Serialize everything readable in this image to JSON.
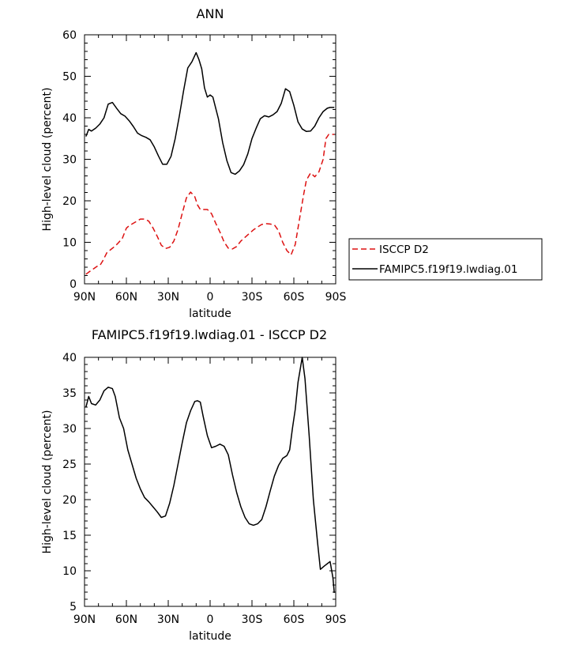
{
  "chart_data": [
    {
      "type": "line",
      "title": "ANN",
      "xlabel": "latitude",
      "ylabel": "High-level cloud (percent)",
      "xlim": [
        -90,
        90
      ],
      "ylim": [
        0,
        60
      ],
      "xticks": [
        -90,
        -60,
        -30,
        0,
        30,
        60,
        90
      ],
      "xtick_labels": [
        "90N",
        "60N",
        "30N",
        "0",
        "30S",
        "60S",
        "90S"
      ],
      "yticks": [
        0,
        10,
        20,
        30,
        40,
        50,
        60
      ],
      "ytick_labels": [
        "0",
        "10",
        "20",
        "30",
        "40",
        "50",
        "60"
      ],
      "legend_position": "right",
      "series": [
        {
          "name": "ISCCP D2",
          "color": "#dd1111",
          "style": "dashed",
          "x": [
            -89,
            -87,
            -84,
            -81,
            -79,
            -77,
            -74,
            -71,
            -68,
            -66,
            -63,
            -60,
            -58,
            -56,
            -53,
            -50,
            -47,
            -44,
            -41,
            -38,
            -35,
            -32,
            -29,
            -26,
            -23,
            -20,
            -17,
            -14,
            -11,
            -9,
            -7,
            -5,
            -2,
            1,
            4,
            7,
            10,
            13,
            16,
            19,
            22,
            25,
            28,
            31,
            34,
            37,
            40,
            43,
            46,
            49,
            52,
            55,
            58,
            61,
            64,
            67,
            69,
            72,
            75,
            78,
            81,
            83,
            85,
            87,
            89
          ],
          "values": [
            2.3,
            2.8,
            3.5,
            4.2,
            4.4,
            5.5,
            7.5,
            8.3,
            9.1,
            9.8,
            10.9,
            13.4,
            14.0,
            14.4,
            15.0,
            15.6,
            15.6,
            15.1,
            13.5,
            11.5,
            9.3,
            8.5,
            8.8,
            10.3,
            13.1,
            17.0,
            20.7,
            22.1,
            21.0,
            19.0,
            17.9,
            17.9,
            17.9,
            16.9,
            14.6,
            12.5,
            10.1,
            8.6,
            8.4,
            9.0,
            10.3,
            11.2,
            12.1,
            13.0,
            13.7,
            14.3,
            14.5,
            14.4,
            14.2,
            12.8,
            10.0,
            8.0,
            7.0,
            9.5,
            15.5,
            21.5,
            25.0,
            26.7,
            25.8,
            27.0,
            30.0,
            35.0,
            36.0,
            36.0,
            36.0
          ]
        },
        {
          "name": "FAMIPC5.f19f19.lwdiag.01",
          "color": "#000000",
          "style": "solid",
          "x": [
            -89,
            -87,
            -85,
            -82,
            -79,
            -76,
            -73,
            -70,
            -67,
            -64,
            -61,
            -58,
            -55,
            -52,
            -49,
            -46,
            -43,
            -40,
            -37,
            -34,
            -31,
            -28,
            -25,
            -22,
            -19,
            -16,
            -13,
            -10,
            -8,
            -6,
            -4,
            -2,
            0,
            2,
            4,
            6,
            9,
            12,
            15,
            18,
            21,
            24,
            27,
            30,
            33,
            36,
            39,
            42,
            45,
            48,
            51,
            54,
            57,
            60,
            63,
            66,
            69,
            72,
            75,
            78,
            81,
            84,
            86,
            88,
            89
          ],
          "values": [
            35.5,
            37.2,
            36.8,
            37.5,
            38.5,
            40.0,
            43.3,
            43.7,
            42.3,
            41.0,
            40.4,
            39.3,
            37.9,
            36.3,
            35.7,
            35.3,
            34.7,
            33.0,
            30.8,
            28.8,
            28.8,
            30.7,
            35.0,
            40.5,
            46.5,
            52.0,
            53.5,
            55.7,
            54.0,
            51.8,
            47.2,
            45.0,
            45.5,
            45.0,
            42.3,
            39.7,
            34.0,
            29.7,
            26.8,
            26.4,
            27.2,
            28.7,
            31.3,
            35.0,
            37.5,
            39.8,
            40.5,
            40.2,
            40.7,
            41.5,
            43.5,
            47.0,
            46.3,
            43.0,
            39.0,
            37.3,
            36.7,
            36.8,
            38.0,
            40.0,
            41.5,
            42.3,
            42.5,
            42.5,
            42.5
          ]
        }
      ]
    },
    {
      "type": "line",
      "title": "FAMIPC5.f19f19.lwdiag.01 - ISCCP D2",
      "xlabel": "latitude",
      "ylabel": "High-level cloud (percent)",
      "xlim": [
        -90,
        90
      ],
      "ylim": [
        5,
        40
      ],
      "xticks": [
        -90,
        -60,
        -30,
        0,
        30,
        60,
        90
      ],
      "xtick_labels": [
        "90N",
        "60N",
        "30N",
        "0",
        "30S",
        "60S",
        "90S"
      ],
      "yticks": [
        5,
        10,
        15,
        20,
        25,
        30,
        35,
        40
      ],
      "ytick_labels": [
        "5",
        "10",
        "15",
        "20",
        "25",
        "30",
        "35",
        "40"
      ],
      "series": [
        {
          "color": "#000000",
          "style": "solid",
          "x": [
            -89,
            -87,
            -85,
            -82,
            -79,
            -76,
            -73,
            -70,
            -68,
            -65,
            -62,
            -59,
            -56,
            -53,
            -50,
            -47,
            -44,
            -41,
            -38,
            -35,
            -32,
            -29,
            -26,
            -23,
            -20,
            -17,
            -14,
            -11,
            -9,
            -7,
            -5,
            -2,
            1,
            4,
            7,
            10,
            13,
            16,
            19,
            22,
            25,
            28,
            31,
            34,
            37,
            40,
            43,
            46,
            49,
            52,
            55,
            57,
            59,
            61,
            63,
            66,
            68,
            71,
            74,
            77,
            79,
            82,
            84,
            86,
            88,
            89
          ],
          "values": [
            33.0,
            34.5,
            33.5,
            33.3,
            34.0,
            35.3,
            35.8,
            35.6,
            34.5,
            31.5,
            30.0,
            27.0,
            25.0,
            23.0,
            21.5,
            20.3,
            19.7,
            19.0,
            18.3,
            17.5,
            17.7,
            19.5,
            22.0,
            25.0,
            28.0,
            30.8,
            32.5,
            33.8,
            33.9,
            33.7,
            31.7,
            29.0,
            27.3,
            27.5,
            27.8,
            27.5,
            26.3,
            23.5,
            21.0,
            19.0,
            17.5,
            16.6,
            16.4,
            16.6,
            17.2,
            19.0,
            21.2,
            23.3,
            24.8,
            25.8,
            26.2,
            27.0,
            30.0,
            32.7,
            36.5,
            40.0,
            37.0,
            29.0,
            20.0,
            14.0,
            10.2,
            10.7,
            11.0,
            11.3,
            9.0,
            6.9
          ]
        }
      ]
    }
  ]
}
